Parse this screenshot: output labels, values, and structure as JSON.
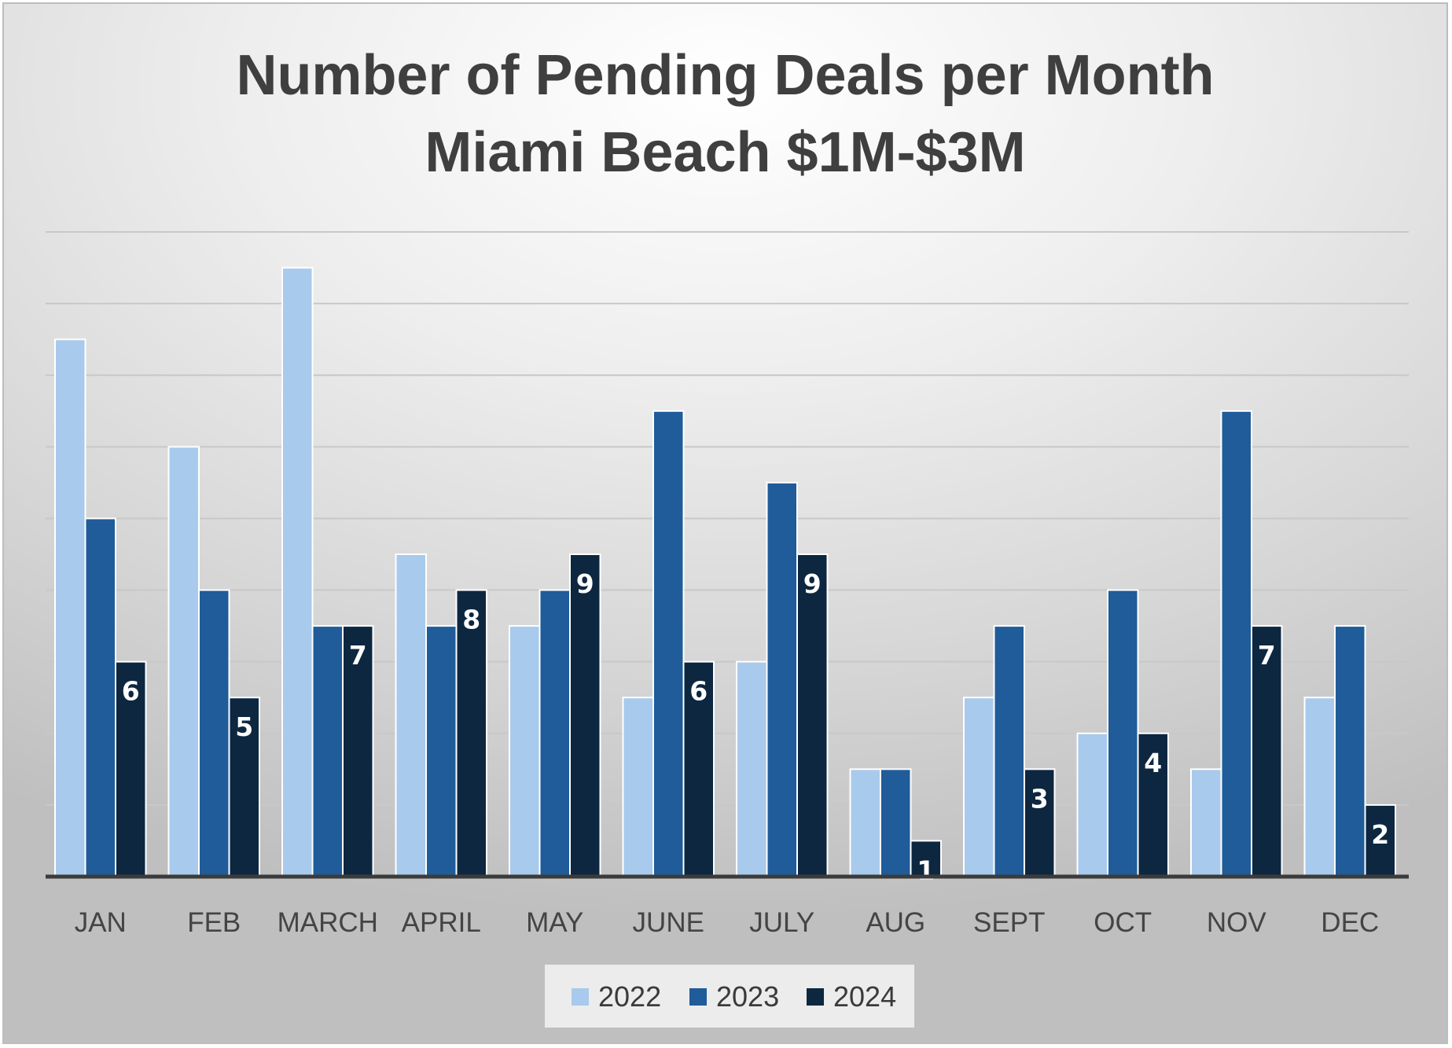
{
  "chart_data": {
    "type": "bar",
    "title": "Number of Pending Deals per Month",
    "subtitle": "Miami Beach $1M-$3M",
    "xlabel": "",
    "ylabel": "",
    "ylim": [
      0,
      18
    ],
    "grid": true,
    "legend_position": "bottom",
    "categories": [
      "JAN",
      "FEB",
      "MARCH",
      "APRIL",
      "MAY",
      "JUNE",
      "JULY",
      "AUG",
      "SEPT",
      "OCT",
      "NOV",
      "DEC"
    ],
    "series": [
      {
        "name": "2022",
        "color": "#a8caec",
        "values": [
          15,
          12,
          17,
          9,
          7,
          5,
          6,
          3,
          5,
          4,
          3,
          5
        ]
      },
      {
        "name": "2023",
        "color": "#1f5c99",
        "values": [
          10,
          8,
          7,
          7,
          8,
          13,
          11,
          3,
          7,
          8,
          13,
          7
        ]
      },
      {
        "name": "2024",
        "color": "#0d2740",
        "values": [
          6,
          5,
          7,
          8,
          9,
          6,
          9,
          1,
          3,
          4,
          7,
          2
        ]
      }
    ],
    "data_labels_series": "2024",
    "data_labels_color": "#ffffff"
  }
}
